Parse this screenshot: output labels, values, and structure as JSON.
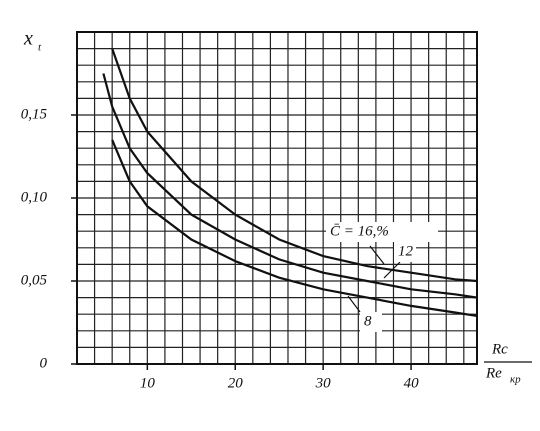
{
  "chart_data": {
    "type": "line",
    "y_label": "x",
    "y_label_sub": "t",
    "x_label": {
      "numerator": "Rc",
      "denominator": "Re",
      "denominator_sub": "кр"
    },
    "x": [
      5,
      6,
      8,
      10,
      15,
      20,
      25,
      30,
      35,
      40,
      45,
      47.5
    ],
    "series": [
      {
        "name": "C̄ = 16,%",
        "color": "#111",
        "values": [
          null,
          0.19,
          0.16,
          0.14,
          0.11,
          0.09,
          0.075,
          0.065,
          0.059,
          0.055,
          0.051,
          0.05
        ]
      },
      {
        "name": "12",
        "color": "#111",
        "values": [
          0.175,
          0.155,
          0.13,
          0.115,
          0.09,
          0.075,
          0.063,
          0.055,
          0.05,
          0.045,
          0.042,
          0.04
        ]
      },
      {
        "name": "8",
        "color": "#111",
        "values": [
          null,
          0.135,
          0.11,
          0.095,
          0.075,
          0.062,
          0.052,
          0.045,
          0.04,
          0.035,
          0.031,
          0.029
        ]
      }
    ],
    "xlim": [
      2,
      47.5
    ],
    "ylim": [
      0,
      0.2
    ],
    "xticks": [
      10,
      20,
      30,
      40
    ],
    "yticks": [
      {
        "value": 0,
        "label": "0"
      },
      {
        "value": 0.05,
        "label": "0,05"
      },
      {
        "value": 0.1,
        "label": "0,10"
      },
      {
        "value": 0.15,
        "label": "0,15"
      }
    ],
    "grid": true,
    "minor_grid": {
      "x": 2,
      "y": 0.01
    }
  }
}
